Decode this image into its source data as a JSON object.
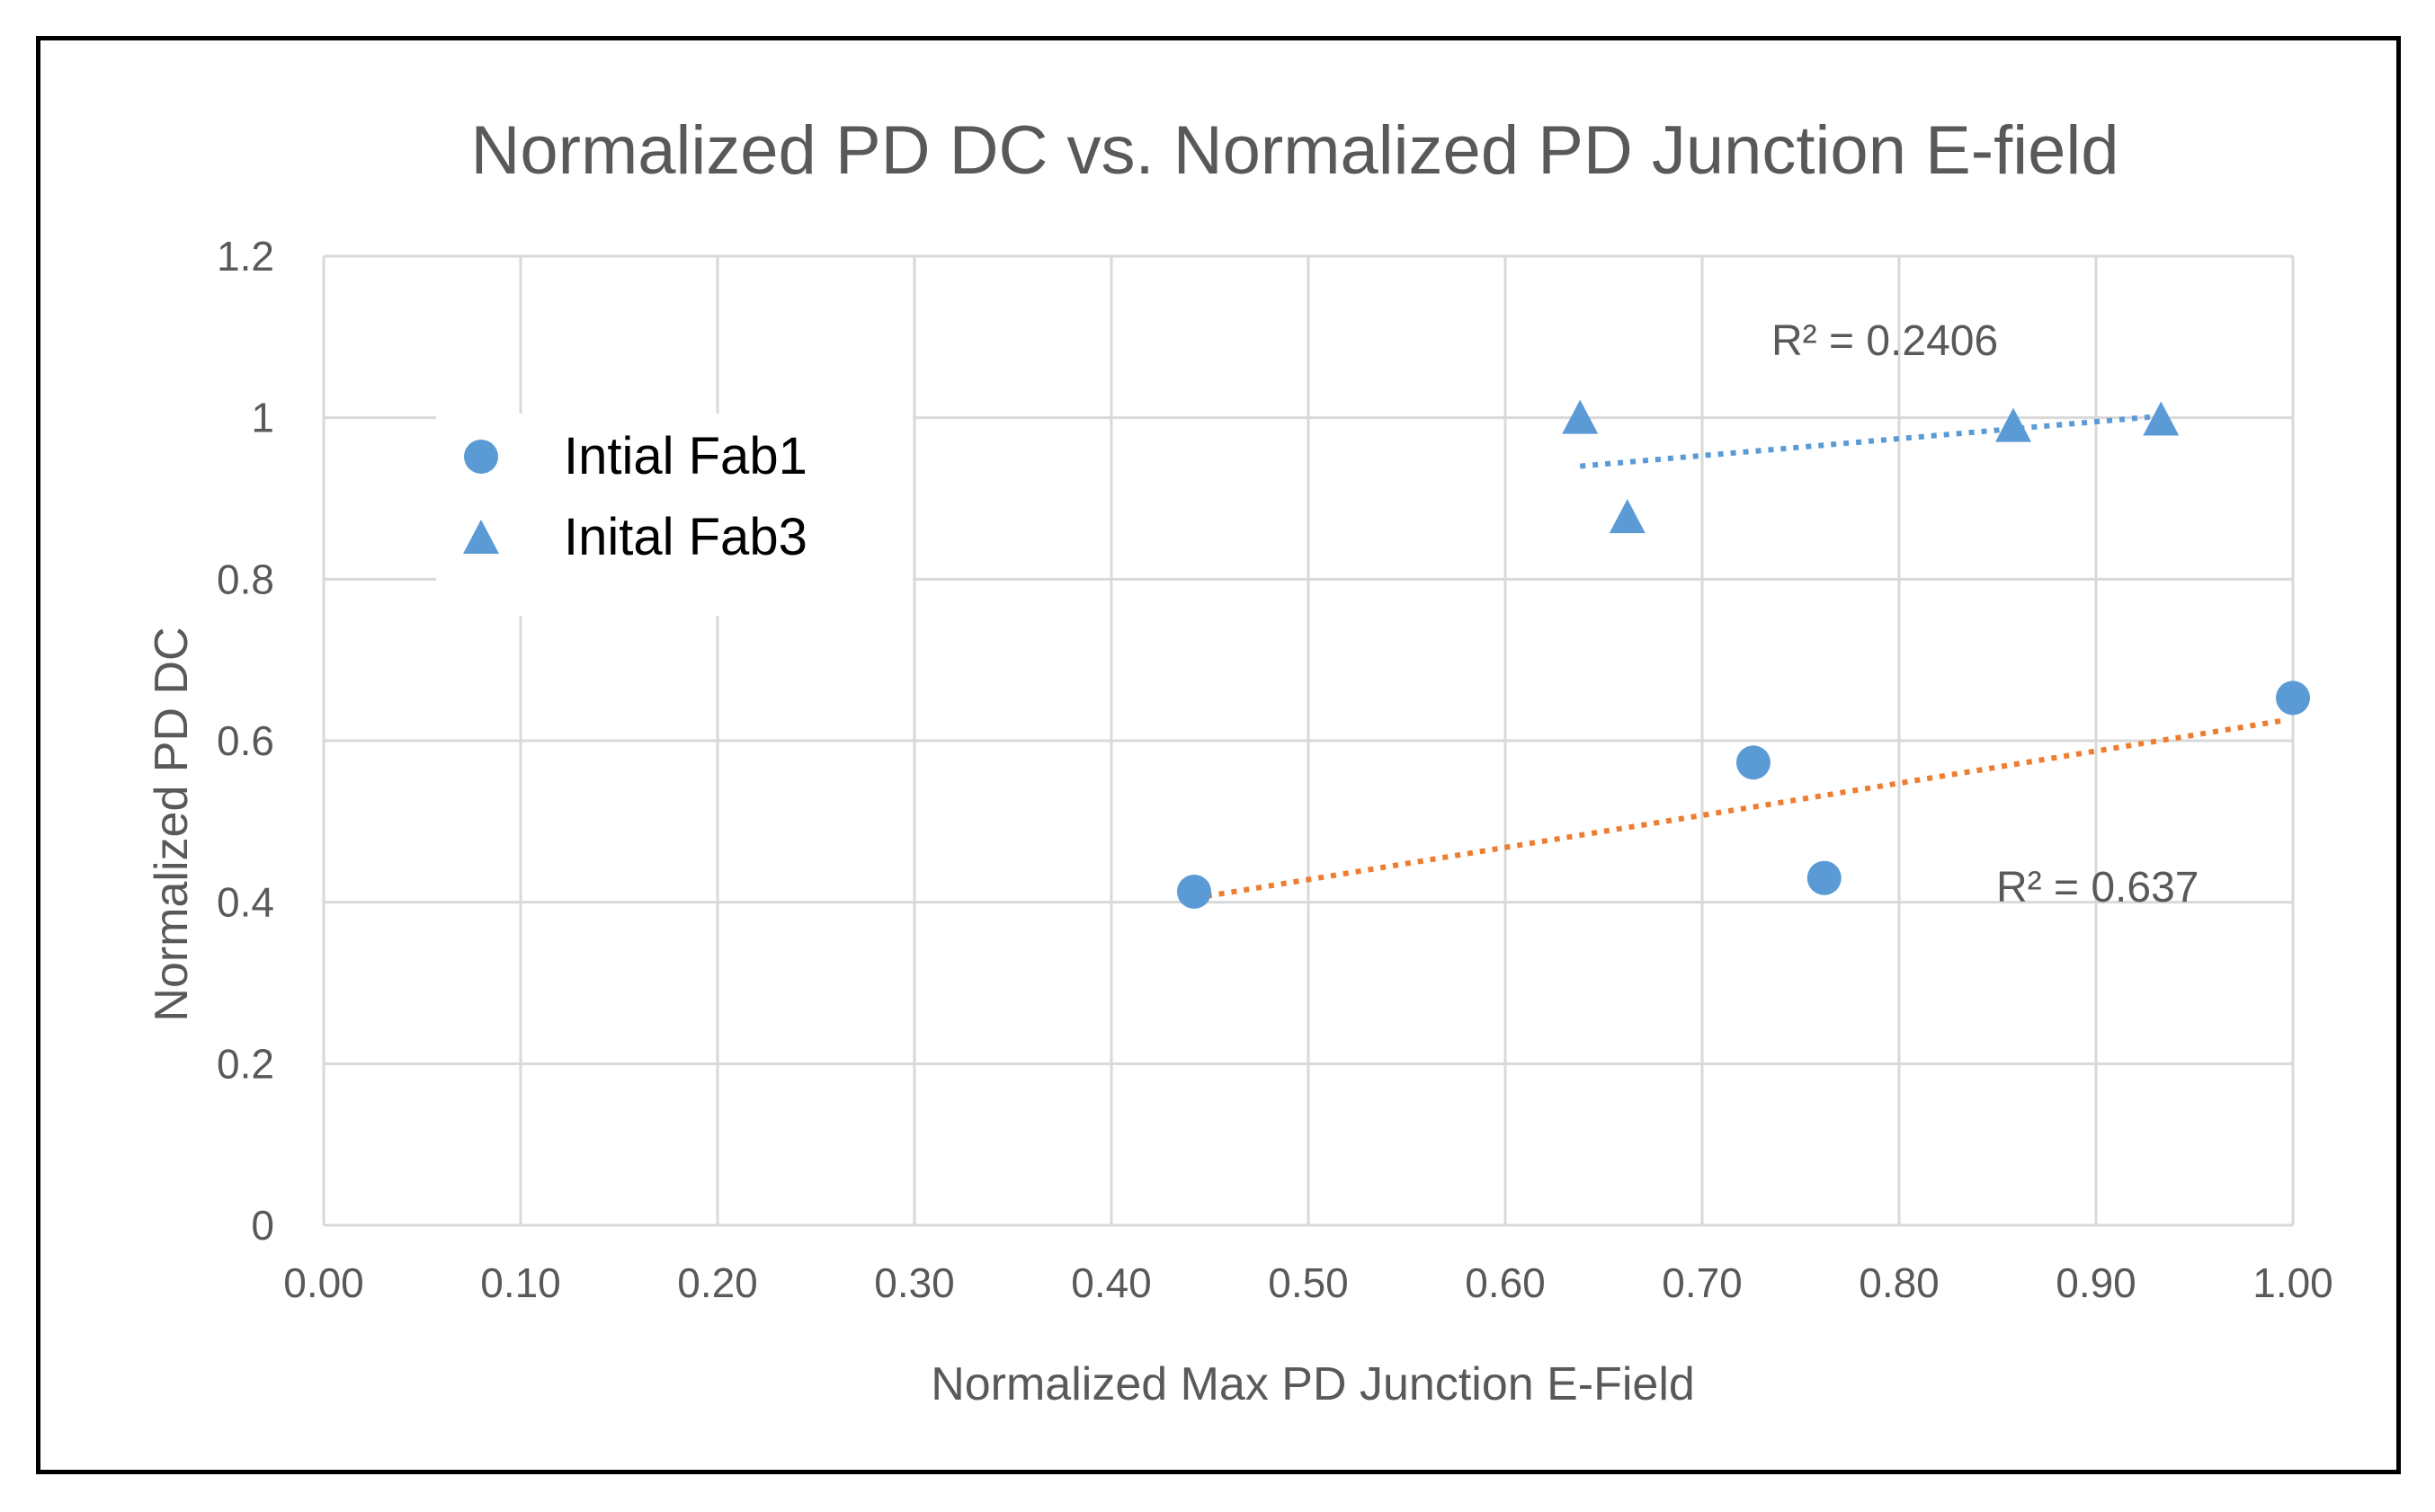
{
  "chart_data": {
    "type": "scatter",
    "title": "Normalized PD DC vs. Normalized  PD Junction E-field",
    "xlabel": "Normalized Max PD Junction E-Field",
    "ylabel": "Normalized PD DC",
    "xlim": [
      0.0,
      1.0
    ],
    "ylim": [
      0,
      1.2
    ],
    "x_ticks": [
      "0.00",
      "0.10",
      "0.20",
      "0.30",
      "0.40",
      "0.50",
      "0.60",
      "0.70",
      "0.80",
      "0.90",
      "1.00"
    ],
    "y_ticks": [
      "0",
      "0.2",
      "0.4",
      "0.6",
      "0.8",
      "1",
      "1.2"
    ],
    "x_tick_values": [
      0.0,
      0.1,
      0.2,
      0.3,
      0.4,
      0.5,
      0.6,
      0.7,
      0.8,
      0.9,
      1.0
    ],
    "y_tick_values": [
      0,
      0.2,
      0.4,
      0.6,
      0.8,
      1.0,
      1.2
    ],
    "grid": true,
    "legend_position": "left",
    "series": [
      {
        "name": "Intial Fab1",
        "marker": "circle",
        "color": "#5b9bd5",
        "x": [
          0.442,
          0.726,
          0.762,
          1.0
        ],
        "y": [
          0.413,
          0.573,
          0.43,
          0.653
        ],
        "trendline": {
          "color": "#ed7d31",
          "x_start": 0.442,
          "y_start": 0.405,
          "x_end": 0.995,
          "y_end": 0.625,
          "r2_label": "R² = 0.637"
        }
      },
      {
        "name": "Inital Fab3",
        "marker": "triangle",
        "color": "#5b9bd5",
        "x": [
          0.638,
          0.662,
          0.858,
          0.933
        ],
        "y": [
          1.0,
          0.877,
          0.99,
          0.998
        ],
        "trendline": {
          "color": "#5b9bd5",
          "x_start": 0.638,
          "y_start": 0.94,
          "x_end": 0.933,
          "y_end": 1.002,
          "r2_label": "R² = 0.2406"
        }
      }
    ]
  }
}
